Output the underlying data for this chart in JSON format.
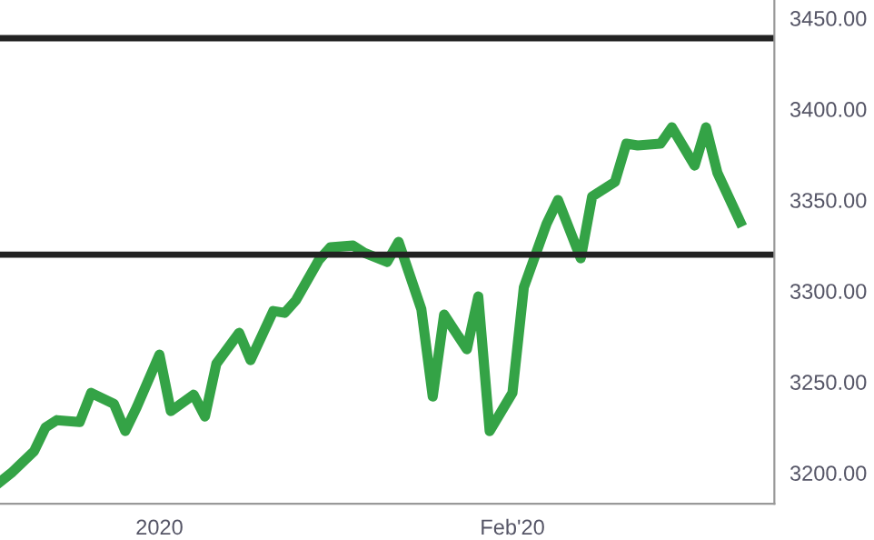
{
  "chart_data": {
    "type": "line",
    "x": [
      "2019-12-18",
      "2019-12-19",
      "2019-12-21",
      "2019-12-22",
      "2019-12-23",
      "2019-12-25",
      "2019-12-26",
      "2019-12-28",
      "2019-12-29",
      "2019-12-30",
      "2020-01-01",
      "2020-01-02",
      "2020-01-04",
      "2020-01-05",
      "2020-01-06",
      "2020-01-08",
      "2020-01-09",
      "2020-01-11",
      "2020-01-12",
      "2020-01-13",
      "2020-01-15",
      "2020-01-16",
      "2020-01-18",
      "2020-01-19",
      "2020-01-21",
      "2020-01-22",
      "2020-01-24",
      "2020-01-25",
      "2020-01-26",
      "2020-01-28",
      "2020-01-29",
      "2020-01-30",
      "2020-02-01",
      "2020-02-02",
      "2020-02-04",
      "2020-02-05",
      "2020-02-07",
      "2020-02-08",
      "2020-02-10",
      "2020-02-11",
      "2020-02-12",
      "2020-02-14",
      "2020-02-15",
      "2020-02-17",
      "2020-02-18",
      "2020-02-19",
      "2020-02-21"
    ],
    "series": [
      {
        "color": "#34a346",
        "values": [
          3195,
          3200,
          3212,
          3225,
          3229,
          3228,
          3244,
          3238,
          3223,
          3236,
          3265,
          3234,
          3243,
          3231,
          3260,
          3277,
          3262,
          3289,
          3288,
          3295,
          3317,
          3324,
          3325,
          3321,
          3316,
          3327,
          3290,
          3242,
          3287,
          3268,
          3297,
          3223,
          3244,
          3302,
          3337,
          3350,
          3318,
          3352,
          3360,
          3381,
          3380,
          3381,
          3390,
          3369,
          3390,
          3365,
          3338
        ]
      }
    ],
    "xlim": [
      "2019-12-18",
      "2020-02-24"
    ],
    "xticks": [
      {
        "value": "2020-01-01",
        "label": "2020"
      },
      {
        "value": "2020-02-01",
        "label": "Feb'20"
      }
    ],
    "ylim": [
      3183,
      3460
    ],
    "yticks": [
      {
        "value": 3200,
        "label": "3200.00"
      },
      {
        "value": 3250,
        "label": "3250.00"
      },
      {
        "value": 3300,
        "label": "3300.00"
      },
      {
        "value": 3350,
        "label": "3350.00"
      },
      {
        "value": 3400,
        "label": "3400.00"
      },
      {
        "value": 3450,
        "label": "3450.00"
      }
    ],
    "ref_lines": [
      {
        "axis": "y",
        "value": 3439,
        "color": "#222222"
      },
      {
        "axis": "y",
        "value": 3320,
        "color": "#222222"
      }
    ],
    "grid": false,
    "legend": false,
    "marker": "none",
    "line_style": "solid"
  }
}
